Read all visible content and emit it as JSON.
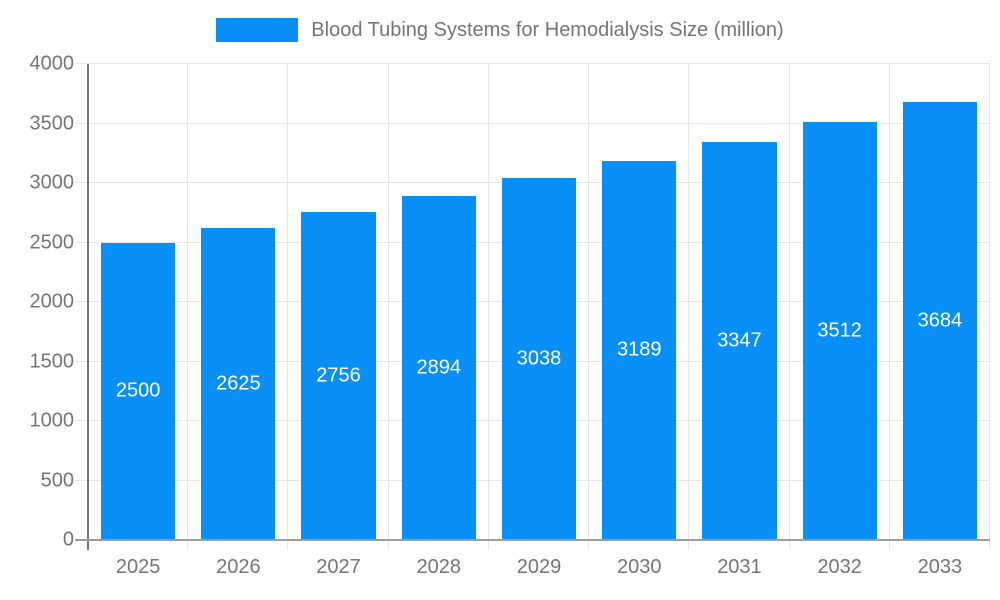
{
  "chart_data": {
    "type": "bar",
    "title": "Blood Tubing Systems for Hemodialysis Size (million)",
    "categories": [
      "2025",
      "2026",
      "2027",
      "2028",
      "2029",
      "2030",
      "2031",
      "2032",
      "2033"
    ],
    "series": [
      {
        "name": "Blood Tubing Systems for Hemodialysis Size (million)",
        "values": [
          2500,
          2625,
          2756,
          2894,
          3038,
          3189,
          3347,
          3512,
          3684
        ]
      }
    ],
    "xlabel": "",
    "ylabel": "",
    "ylim": [
      0,
      4000
    ],
    "ytick_step": 500,
    "yticks": [
      0,
      500,
      1000,
      1500,
      2000,
      2500,
      3000,
      3500,
      4000
    ],
    "grid": "on",
    "legend_position": "top-center",
    "value_labels": "inside-center"
  },
  "colors": {
    "bar": "#0890f8",
    "bar_value_text": "#ffffff",
    "axis_text": "#757575",
    "y_axis_line": "#757575",
    "x_axis_line": "#9e9e9e",
    "gridline": "#e6e6e6",
    "background": "#ffffff"
  }
}
